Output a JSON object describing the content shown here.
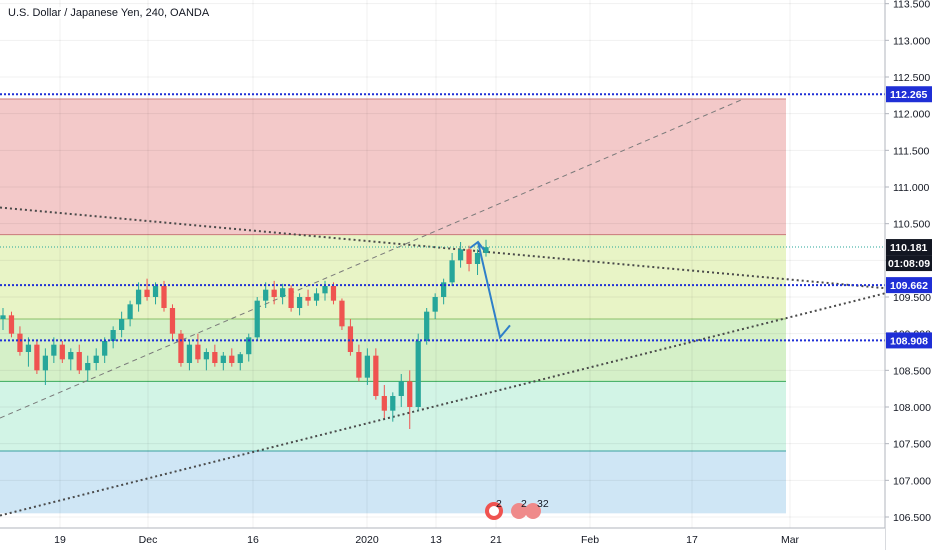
{
  "header": {
    "title": "U.S. Dollar / Japanese Yen, 240, OANDA"
  },
  "colors": {
    "up": "#26a69a",
    "down": "#ef5350",
    "level_line": "#1f2fd6",
    "badge_blue": "#1f2fd6",
    "badge_dark": "#131722",
    "arrow": "#2f7fc9",
    "zone_top": "#f3c9c9",
    "zone_mid": "#e8f4c6",
    "zone_low1": "#d5f0c8",
    "zone_low2": "#d2f4e6",
    "zone_bottom": "#cfe6f5",
    "trend": "#4a4a4a"
  },
  "chart_data": {
    "type": "candlestick",
    "title": "U.S. Dollar / Japanese Yen, 240, OANDA",
    "y_range": [
      106.35,
      113.55
    ],
    "y_ticks": [
      "113.500",
      "113.000",
      "112.500",
      "112.000",
      "111.500",
      "111.000",
      "110.500",
      "110.000",
      "109.500",
      "109.000",
      "108.500",
      "108.000",
      "107.500",
      "107.000",
      "106.500"
    ],
    "x_ticks": [
      "19",
      "Dec",
      "16",
      "2020",
      "13",
      "21",
      "Feb",
      "17",
      "Mar"
    ],
    "horizontal_levels": [
      {
        "value": 112.265,
        "label": "112.265"
      },
      {
        "value": 109.662,
        "label": "109.662"
      },
      {
        "value": 108.908,
        "label": "108.908"
      }
    ],
    "last_price": {
      "value": 110.181,
      "label": "110.181",
      "countdown": "01:08:09"
    },
    "zone_boundaries": [
      112.2,
      110.35,
      109.2,
      108.35,
      107.4
    ],
    "candles": [
      [
        109.2,
        109.35,
        109.05,
        109.25
      ],
      [
        109.25,
        109.3,
        108.95,
        109.0
      ],
      [
        109.0,
        109.1,
        108.7,
        108.75
      ],
      [
        108.75,
        108.95,
        108.55,
        108.85
      ],
      [
        108.85,
        108.9,
        108.45,
        108.5
      ],
      [
        108.5,
        108.8,
        108.3,
        108.7
      ],
      [
        108.7,
        108.95,
        108.6,
        108.85
      ],
      [
        108.85,
        108.9,
        108.6,
        108.65
      ],
      [
        108.65,
        108.8,
        108.5,
        108.75
      ],
      [
        108.75,
        108.85,
        108.45,
        108.5
      ],
      [
        108.5,
        108.7,
        108.35,
        108.6
      ],
      [
        108.6,
        108.8,
        108.5,
        108.7
      ],
      [
        108.7,
        108.95,
        108.6,
        108.9
      ],
      [
        108.9,
        109.1,
        108.8,
        109.05
      ],
      [
        109.05,
        109.3,
        108.95,
        109.2
      ],
      [
        109.2,
        109.45,
        109.1,
        109.4
      ],
      [
        109.4,
        109.7,
        109.3,
        109.6
      ],
      [
        109.6,
        109.75,
        109.45,
        109.5
      ],
      [
        109.5,
        109.7,
        109.4,
        109.65
      ],
      [
        109.65,
        109.72,
        109.3,
        109.35
      ],
      [
        109.35,
        109.4,
        108.9,
        109.0
      ],
      [
        109.0,
        109.05,
        108.55,
        108.6
      ],
      [
        108.6,
        108.9,
        108.5,
        108.85
      ],
      [
        108.85,
        109.0,
        108.6,
        108.65
      ],
      [
        108.65,
        108.8,
        108.5,
        108.75
      ],
      [
        108.75,
        108.85,
        108.55,
        108.6
      ],
      [
        108.6,
        108.75,
        108.5,
        108.7
      ],
      [
        108.7,
        108.8,
        108.55,
        108.6
      ],
      [
        108.6,
        108.75,
        108.5,
        108.72
      ],
      [
        108.72,
        109.0,
        108.62,
        108.95
      ],
      [
        108.95,
        109.5,
        108.9,
        109.45
      ],
      [
        109.45,
        109.7,
        109.35,
        109.6
      ],
      [
        109.6,
        109.72,
        109.4,
        109.5
      ],
      [
        109.5,
        109.68,
        109.4,
        109.62
      ],
      [
        109.62,
        109.66,
        109.3,
        109.35
      ],
      [
        109.35,
        109.55,
        109.25,
        109.5
      ],
      [
        109.5,
        109.6,
        109.38,
        109.45
      ],
      [
        109.45,
        109.62,
        109.38,
        109.55
      ],
      [
        109.55,
        109.72,
        109.45,
        109.65
      ],
      [
        109.65,
        109.7,
        109.4,
        109.45
      ],
      [
        109.45,
        109.48,
        109.05,
        109.1
      ],
      [
        109.1,
        109.2,
        108.7,
        108.75
      ],
      [
        108.75,
        108.85,
        108.35,
        108.4
      ],
      [
        108.4,
        108.8,
        108.3,
        108.7
      ],
      [
        108.7,
        108.8,
        108.1,
        108.15
      ],
      [
        108.15,
        108.3,
        107.85,
        107.95
      ],
      [
        107.95,
        108.2,
        107.8,
        108.15
      ],
      [
        108.15,
        108.45,
        108.0,
        108.35
      ],
      [
        108.35,
        108.5,
        107.7,
        108.0
      ],
      [
        108.0,
        109.0,
        107.95,
        108.9
      ],
      [
        108.9,
        109.35,
        108.85,
        109.3
      ],
      [
        109.3,
        109.55,
        109.2,
        109.5
      ],
      [
        109.5,
        109.75,
        109.4,
        109.7
      ],
      [
        109.7,
        110.1,
        109.65,
        110.0
      ],
      [
        110.0,
        110.25,
        109.9,
        110.15
      ],
      [
        110.15,
        110.2,
        109.85,
        109.95
      ],
      [
        109.95,
        110.15,
        109.8,
        110.1
      ],
      [
        110.1,
        110.28,
        110.05,
        110.18
      ]
    ],
    "trendlines": [
      {
        "style": "dotted",
        "from": [
          0,
          110.72
        ],
        "to": [
          1.0,
          109.62
        ]
      },
      {
        "style": "dotted",
        "from": [
          0,
          106.52
        ],
        "to": [
          1.0,
          109.55
        ]
      },
      {
        "style": "dashed",
        "from": [
          0,
          107.85
        ],
        "to": [
          0.84,
          112.2
        ]
      }
    ],
    "projection_arrow": {
      "from_price": 110.25,
      "to_price": 108.95
    }
  },
  "icons": {
    "events": "event-markers-icon"
  },
  "events_labels": [
    "2",
    "2",
    "32"
  ]
}
